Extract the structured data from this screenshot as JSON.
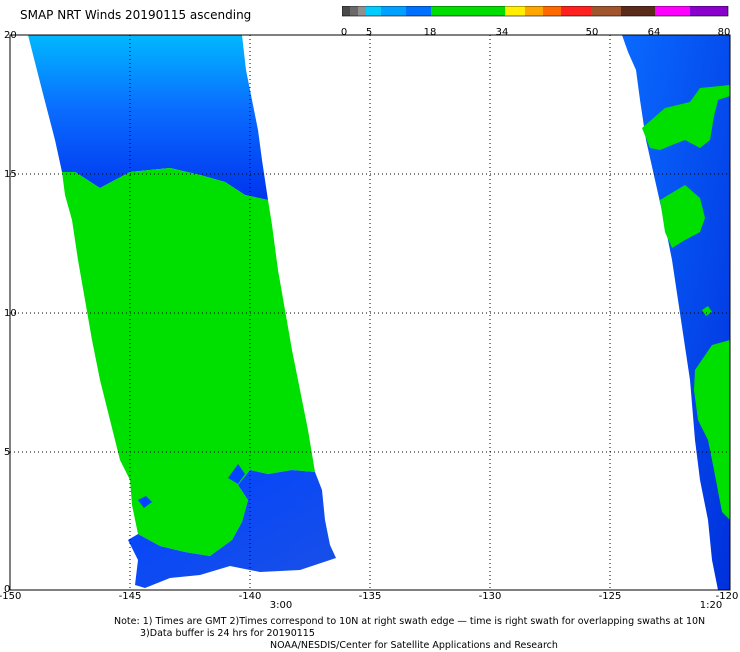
{
  "title": "SMAP NRT Winds 20190115 ascending",
  "colorbar": {
    "labels": [
      "0",
      "5",
      "18",
      "34",
      "50",
      "64",
      "80"
    ],
    "colors": {
      "calm": "#555555",
      "low": "#00ccff",
      "mid_blue": "#0050ff",
      "gale": "#00dd00",
      "storm_yellow": "#ffee00",
      "storm_orange": "#ff8800",
      "storm_red": "#ff2020",
      "hurricane_brown": "#8a4a2a",
      "extreme": "#cc00ff"
    }
  },
  "axes": {
    "x_labels": [
      "-150",
      "-145",
      "-140",
      "-135",
      "-130",
      "-125",
      "-120"
    ],
    "y_labels": [
      "0",
      "5",
      "10",
      "15",
      "20"
    ],
    "grid": "dotted"
  },
  "swath_times": {
    "left": "3:00",
    "right": "1:20"
  },
  "notes": {
    "line1": "Note: 1) Times are GMT 2)Times correspond to 10N at right swath edge — time is right swath for overlapping swaths at 10N",
    "line2": "3)Data buffer is 24 hrs for 20190115",
    "line3": "NOAA/NESDIS/Center for Satellite Applications and Research"
  }
}
